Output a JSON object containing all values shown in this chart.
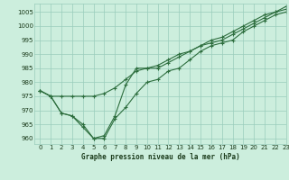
{
  "title": "Graphe pression niveau de la mer (hPa)",
  "background_color": "#cceedd",
  "grid_color": "#99ccbb",
  "line_color": "#2d6e3e",
  "xlim": [
    -0.5,
    23
  ],
  "ylim": [
    958,
    1008
  ],
  "yticks": [
    960,
    965,
    970,
    975,
    980,
    985,
    990,
    995,
    1000,
    1005
  ],
  "xticks": [
    0,
    1,
    2,
    3,
    4,
    5,
    6,
    7,
    8,
    9,
    10,
    11,
    12,
    13,
    14,
    15,
    16,
    17,
    18,
    19,
    20,
    21,
    22,
    23
  ],
  "series1": [
    977,
    975,
    969,
    968,
    964,
    960,
    960,
    967,
    971,
    976,
    980,
    981,
    984,
    985,
    988,
    991,
    993,
    994,
    995,
    998,
    1000,
    1002,
    1004,
    1005
  ],
  "series2": [
    977,
    975,
    969,
    968,
    965,
    960,
    961,
    968,
    979,
    985,
    985,
    985,
    987,
    989,
    991,
    993,
    995,
    996,
    998,
    1000,
    1002,
    1004,
    1005,
    1007
  ],
  "series3": [
    977,
    975,
    975,
    975,
    975,
    975,
    976,
    978,
    981,
    984,
    985,
    986,
    988,
    990,
    991,
    993,
    994,
    995,
    997,
    999,
    1001,
    1003,
    1005,
    1006
  ]
}
